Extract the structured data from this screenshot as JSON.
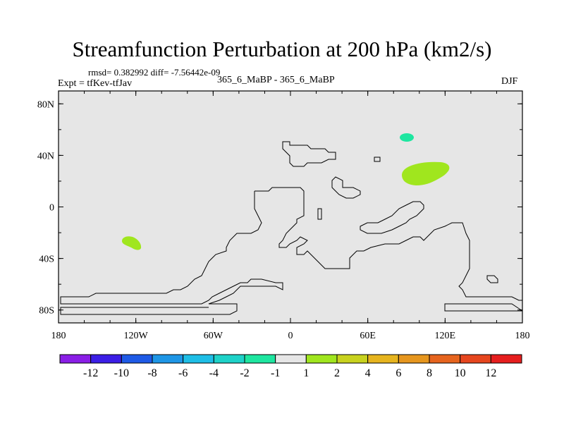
{
  "title": "Streamfunction Perturbation at 200 hPa (km2/s)",
  "stats_line": "rmsd= 0.382992 diff= -7.56442e-09",
  "experiment_line": "Expt = tfKev-tfJav",
  "case_line": "365_6_MaBP - 365_6_MaBP",
  "season": "DJF",
  "map": {
    "x_ticks": [
      "180",
      "120W",
      "60W",
      "0",
      "60E",
      "120E",
      "180"
    ],
    "y_ticks": [
      "80N",
      "40N",
      "0",
      "40S",
      "80S"
    ],
    "background_color": "#e6e6e6",
    "coastline_color": "#000000"
  },
  "colorbar": {
    "labels": [
      "-12",
      "-10",
      "-8",
      "-6",
      "-4",
      "-2",
      "-1",
      "1",
      "2",
      "4",
      "6",
      "8",
      "10",
      "12"
    ],
    "colors": [
      "#8a1ee6",
      "#3c1ee6",
      "#1e5ae6",
      "#1e96e6",
      "#1ebee6",
      "#1ed2c8",
      "#1ee6a0",
      "#e6e6e6",
      "#a0e61e",
      "#c8d21e",
      "#e6b41e",
      "#e6961e",
      "#e6641e",
      "#e6461e",
      "#e61e1e"
    ]
  },
  "chart_data": {
    "type": "heatmap",
    "title": "Streamfunction Perturbation at 200 hPa (km2/s)",
    "x_range": [
      -180,
      180
    ],
    "y_range": [
      -90,
      90
    ],
    "features": [
      {
        "level": "-2 to -1",
        "color": "#1ee6a0",
        "lon": 90,
        "lat": 55
      },
      {
        "level": "1 to 2",
        "color": "#a0e61e",
        "lon": 100,
        "lat": 27
      },
      {
        "level": "1 to 2",
        "color": "#a0e61e",
        "lon": -125,
        "lat": -27
      }
    ]
  }
}
